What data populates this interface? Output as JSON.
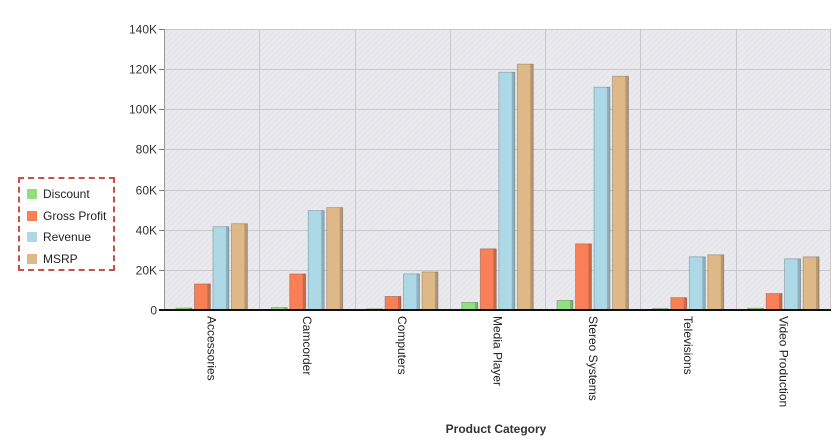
{
  "chart_data": {
    "type": "bar",
    "title": "",
    "xlabel": "Product Category",
    "ylabel": "",
    "ylim": [
      0,
      140000
    ],
    "yticks": [
      0,
      20000,
      40000,
      60000,
      80000,
      100000,
      120000,
      140000
    ],
    "ytick_labels": [
      "0",
      "20K",
      "40K",
      "60K",
      "80K",
      "100K",
      "120K",
      "140K"
    ],
    "categories": [
      "Accessories",
      "Camcorder",
      "Computers",
      "Media Player",
      "Stereo Systems",
      "Televisions",
      "Video Production"
    ],
    "series": [
      {
        "name": "Discount",
        "color": "#90e080",
        "values": [
          1000,
          1200,
          600,
          3800,
          4800,
          700,
          900
        ]
      },
      {
        "name": "Gross Profit",
        "color": "#f87f56",
        "values": [
          13000,
          18000,
          6800,
          30500,
          33000,
          6200,
          8200
        ]
      },
      {
        "name": "Revenue",
        "color": "#add8e6",
        "values": [
          41500,
          49500,
          18000,
          118500,
          111000,
          26500,
          25500
        ]
      },
      {
        "name": "MSRP",
        "color": "#deb887",
        "values": [
          43000,
          51000,
          19000,
          122500,
          116500,
          27500,
          26500
        ]
      }
    ],
    "grid": true,
    "legend_position": "left"
  }
}
